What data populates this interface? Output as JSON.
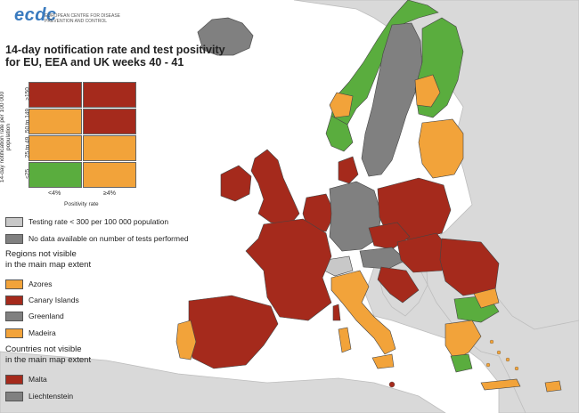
{
  "logo": {
    "name": "ecdc",
    "subtitle": "EUROPEAN CENTRE FOR DISEASE PREVENTION AND CONTROL"
  },
  "title_line1": "14-day notification rate and test positivity",
  "title_line2": "for EU, EEA and UK weeks 40 - 41",
  "matrix": {
    "y_axis_label": "14-day notification rate per 100 000 population",
    "y_categories": [
      ">150",
      "50 to 149",
      "25 to 49",
      "<25"
    ],
    "x_axis_label": "Positivity rate",
    "x_categories": [
      "<4%",
      "≥4%"
    ],
    "cells": [
      [
        "#a52a1c",
        "#a52a1c"
      ],
      [
        "#f2a33a",
        "#a52a1c"
      ],
      [
        "#f2a33a",
        "#f2a33a"
      ],
      [
        "#5aad3e",
        "#f2a33a"
      ]
    ]
  },
  "legend": {
    "testing_low": "Testing rate < 300 per 100 000 population",
    "no_data": "No data available on number of tests performed",
    "regions_heading_1": "Regions not visible",
    "regions_heading_2": "in the main map extent",
    "regions": [
      {
        "name": "Azores",
        "color": "#f2a33a"
      },
      {
        "name": "Canary Islands",
        "color": "#a52a1c"
      },
      {
        "name": "Greenland",
        "color": "#808080"
      },
      {
        "name": "Madeira",
        "color": "#f2a33a"
      }
    ],
    "countries_heading_1": "Countries not visible",
    "countries_heading_2": "in the main map extent",
    "countries": [
      {
        "name": "Malta",
        "color": "#a52a1c"
      },
      {
        "name": "Liechtenstein",
        "color": "#808080"
      }
    ]
  },
  "colors": {
    "red": "#a52a1c",
    "orange": "#f2a33a",
    "green": "#5aad3e",
    "dark_grey": "#808080",
    "light_grey": "#c8c8c8",
    "non_eu": "#d9d9d9",
    "sea": "#ffffff"
  }
}
